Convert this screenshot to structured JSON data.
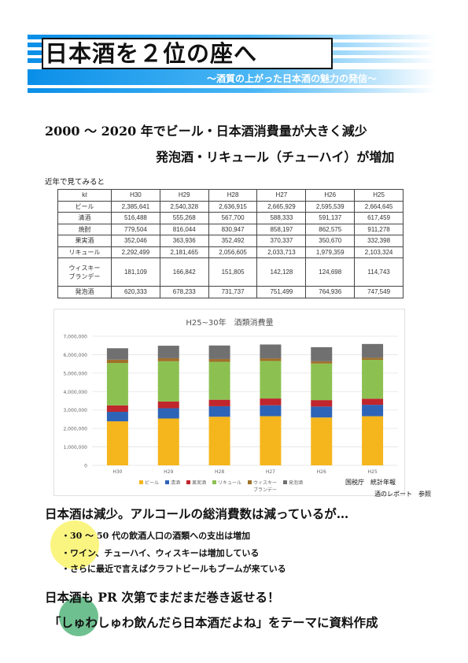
{
  "header": {
    "title": "日本酒を２位の座へ",
    "subtitle": "～酒質の上がった日本酒の魅力の発信～"
  },
  "headline": {
    "line1": "2000 ～ 2020 年でビール・日本酒消費量が大きく減少",
    "line2": "発泡酒・リキュール（チューハイ）が増加"
  },
  "table_caption": "近年で見てみると",
  "table": {
    "headers": [
      "kℓ",
      "H30",
      "H29",
      "H28",
      "H27",
      "H26",
      "H25"
    ],
    "rows": [
      {
        "label": "ビール",
        "values": [
          "2,385,641",
          "2,540,328",
          "2,636,915",
          "2,665,929",
          "2,595,539",
          "2,664,645"
        ]
      },
      {
        "label": "清酒",
        "values": [
          "516,488",
          "555,268",
          "567,700",
          "588,333",
          "591,137",
          "617,459"
        ]
      },
      {
        "label": "焼酎",
        "values": [
          "779,504",
          "816,044",
          "830,947",
          "858,197",
          "862,575",
          "911,278"
        ]
      },
      {
        "label": "果実酒",
        "values": [
          "352,046",
          "363,936",
          "352,492",
          "370,337",
          "350,670",
          "332,398"
        ]
      },
      {
        "label": "リキュール",
        "values": [
          "2,292,499",
          "2,181,465",
          "2,056,605",
          "2,033,713",
          "1,979,359",
          "2,103,324"
        ]
      },
      {
        "label": "ウィスキー\nブランデー",
        "values": [
          "181,109",
          "166,842",
          "151,805",
          "142,128",
          "124,698",
          "114,743"
        ]
      },
      {
        "label": "発泡酒",
        "values": [
          "620,333",
          "678,233",
          "731,737",
          "751,499",
          "764,936",
          "747,549"
        ]
      }
    ]
  },
  "chart_data": {
    "type": "bar",
    "stacked": true,
    "title": "H25~30年　酒類消費量",
    "categories": [
      "H30",
      "H29",
      "H28",
      "H27",
      "H26",
      "H25"
    ],
    "ylim": [
      0,
      7000000
    ],
    "yticks": [
      "0",
      "1,000,000",
      "2,000,000",
      "3,000,000",
      "4,000,000",
      "5,000,000",
      "6,000,000",
      "7,000,000"
    ],
    "grid": true,
    "legend_position": "bottom",
    "series": [
      {
        "name": "ビール",
        "color": "#f5b51c",
        "values": [
          2385641,
          2540328,
          2636915,
          2665929,
          2595539,
          2664645
        ]
      },
      {
        "name": "清酒",
        "color": "#2e64b8",
        "values": [
          516488,
          555268,
          567700,
          588333,
          591137,
          617459
        ]
      },
      {
        "name": "果実酒",
        "color": "#c0262d",
        "values": [
          352046,
          363936,
          352492,
          370337,
          350670,
          332398
        ]
      },
      {
        "name": "リキュール",
        "color": "#8cc152",
        "values": [
          2292499,
          2181465,
          2056605,
          2033713,
          1979359,
          2103324
        ]
      },
      {
        "name": "ウィスキー\nブランデー",
        "color": "#a0702b",
        "values": [
          181109,
          166842,
          151805,
          142128,
          124698,
          114743
        ]
      },
      {
        "name": "発泡酒",
        "color": "#707070",
        "values": [
          620333,
          678233,
          731737,
          751499,
          764936,
          747549
        ]
      }
    ]
  },
  "source": {
    "line1": "国税庁　統計年報",
    "line2": "酒のレポート　参照"
  },
  "section1": {
    "heading": "日本酒は減少。アルコールの総消費数は減っているが…",
    "bullets": [
      "・30 ～ 50 代の飲酒人口の酒類への支出は増加",
      "・ワイン、チューハイ、ウィスキーは増加している",
      "・さらに最近で言えばクラフトビールもブームが来ている"
    ]
  },
  "section2": {
    "heading": "日本酒も PR 次第でまだまだ巻き返せる！",
    "theme": "「しゅわしゅわ飲んだら日本酒だよね」をテーマに資料作成"
  }
}
